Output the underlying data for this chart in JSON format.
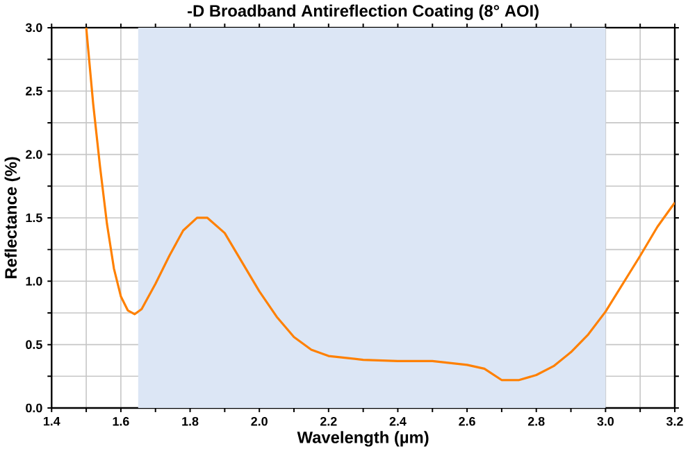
{
  "chart_data": {
    "type": "line",
    "title": "-D Broadband Antireflection Coating (8° AOI)",
    "xlabel": "Wavelength (µm)",
    "ylabel": "Reflectance (%)",
    "xlim": [
      1.4,
      3.2
    ],
    "ylim": [
      0,
      3
    ],
    "xticks": [
      1.4,
      {
        "value": 1.5,
        "label": null
      },
      1.6,
      {
        "value": 1.7,
        "label": null
      },
      1.8,
      {
        "value": 1.9,
        "label": null
      },
      {
        "value": 2,
        "label": "2.0"
      },
      {
        "value": 2.1,
        "label": null
      },
      2.2,
      {
        "value": 2.3,
        "label": null
      },
      2.4,
      {
        "value": 2.5,
        "label": null
      },
      2.6,
      {
        "value": 2.7,
        "label": null
      },
      2.8,
      {
        "value": 2.9,
        "label": null
      },
      {
        "value": 3,
        "label": "3.0"
      },
      {
        "value": 3.1,
        "label": null
      },
      3.2
    ],
    "yticks": [
      {
        "value": 0,
        "label": "0.0"
      },
      {
        "value": 0.25,
        "label": null
      },
      0.5,
      {
        "value": 0.75,
        "label": null
      },
      {
        "value": 1,
        "label": "1.0"
      },
      {
        "value": 1.25,
        "label": null
      },
      1.5,
      {
        "value": 1.75,
        "label": null
      },
      {
        "value": 2,
        "label": "2.0"
      },
      {
        "value": 2.25,
        "label": null
      },
      2.5,
      {
        "value": 2.75,
        "label": null
      },
      {
        "value": 3,
        "label": "3.0"
      }
    ],
    "grid": true,
    "bands": [
      {
        "axis": "x",
        "from": 1.65,
        "to": 3.0,
        "color": "#dce6f5"
      }
    ],
    "series": [
      {
        "color": "#ff8000",
        "x": [
          1.5,
          1.52,
          1.54,
          1.56,
          1.58,
          1.6,
          1.62,
          1.64,
          1.66,
          1.7,
          1.74,
          1.78,
          1.82,
          1.85,
          1.9,
          1.95,
          2.0,
          2.05,
          2.1,
          2.15,
          2.2,
          2.3,
          2.4,
          2.5,
          2.6,
          2.65,
          2.7,
          2.75,
          2.8,
          2.85,
          2.9,
          2.95,
          3.0,
          3.05,
          3.1,
          3.15,
          3.2
        ],
        "values": [
          3.0,
          2.4,
          1.9,
          1.45,
          1.1,
          0.88,
          0.77,
          0.74,
          0.78,
          0.98,
          1.2,
          1.4,
          1.5,
          1.5,
          1.38,
          1.15,
          0.92,
          0.72,
          0.56,
          0.46,
          0.41,
          0.38,
          0.37,
          0.37,
          0.34,
          0.31,
          0.22,
          0.22,
          0.26,
          0.33,
          0.44,
          0.58,
          0.76,
          0.98,
          1.2,
          1.43,
          1.62
        ]
      }
    ]
  }
}
